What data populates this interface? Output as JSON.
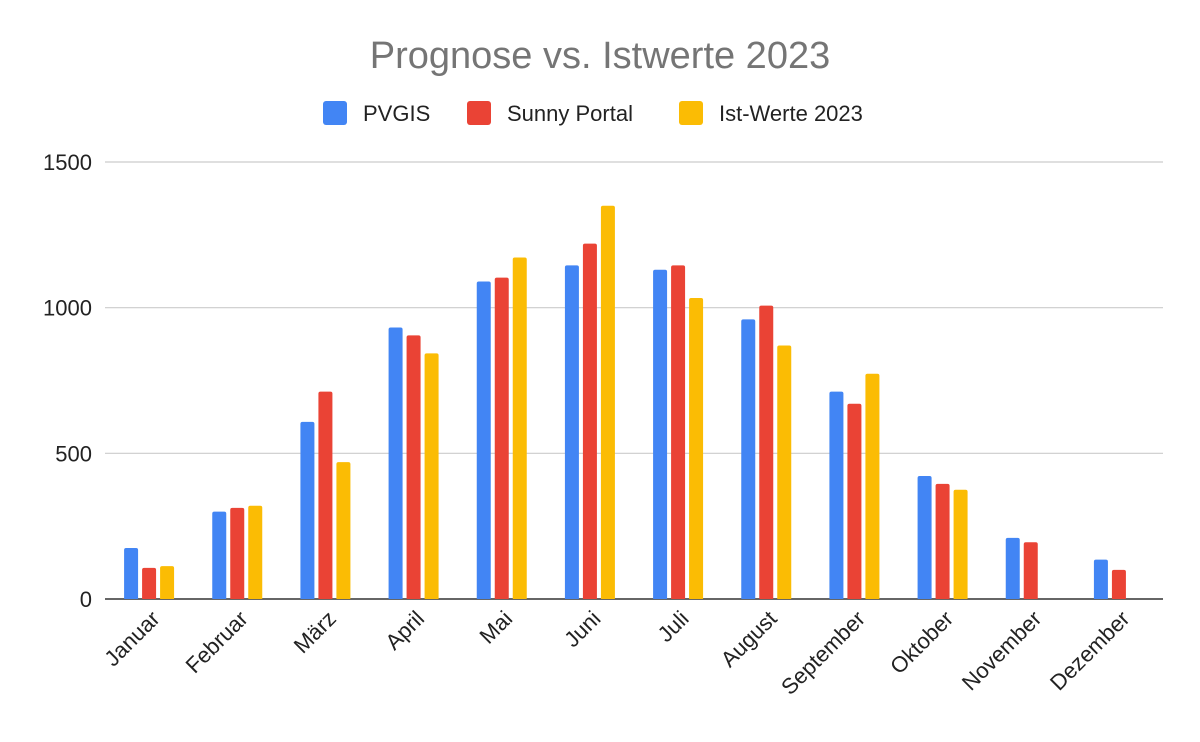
{
  "chart_data": {
    "type": "bar",
    "title": "Prognose vs. Istwerte 2023",
    "xlabel": "",
    "ylabel": "",
    "ylim": [
      0,
      1500
    ],
    "yticks": [
      0,
      500,
      1000,
      1500
    ],
    "grid": true,
    "legend_position": "top-center",
    "categories": [
      "Januar",
      "Februar",
      "März",
      "April",
      "Mai",
      "Juni",
      "Juli",
      "August",
      "September",
      "Oktober",
      "November",
      "Dezember"
    ],
    "series": [
      {
        "name": "PVGIS",
        "color": "#4285f4",
        "values": [
          175,
          300,
          608,
          932,
          1090,
          1145,
          1130,
          960,
          712,
          422,
          210,
          135
        ]
      },
      {
        "name": "Sunny Portal",
        "color": "#ea4335",
        "values": [
          107,
          313,
          712,
          905,
          1103,
          1220,
          1145,
          1007,
          670,
          395,
          195,
          100
        ]
      },
      {
        "name": "Ist-Werte 2023",
        "color": "#fbbc04",
        "values": [
          113,
          320,
          470,
          843,
          1172,
          1350,
          1033,
          870,
          773,
          375,
          null,
          null
        ]
      }
    ]
  }
}
